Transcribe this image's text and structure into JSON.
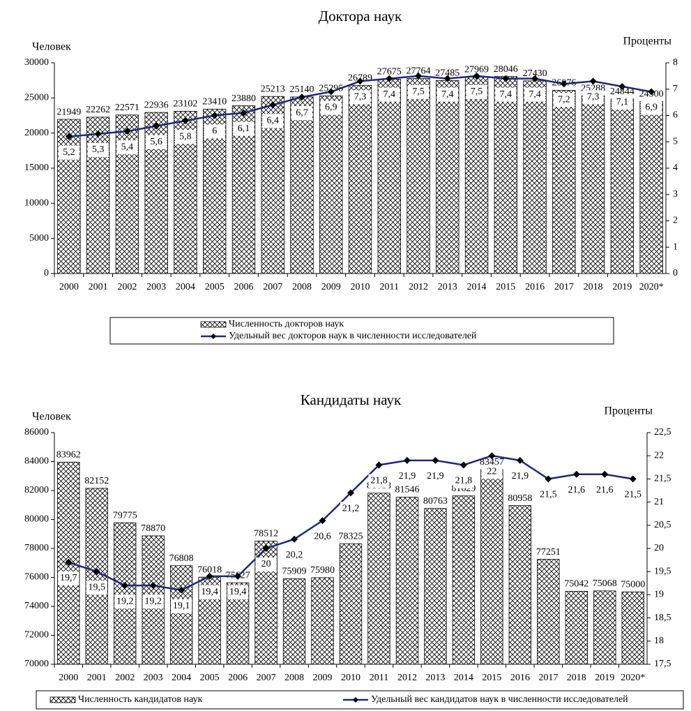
{
  "chart_data": [
    {
      "type": "bar-line",
      "title": "Доктора наук",
      "y_label": "Человек",
      "y2_label": "Проценты",
      "categories": [
        "2000",
        "2001",
        "2002",
        "2003",
        "2004",
        "2005",
        "2006",
        "2007",
        "2008",
        "2009",
        "2010",
        "2011",
        "2012",
        "2013",
        "2014",
        "2015",
        "2016",
        "2017",
        "2018",
        "2019",
        "2020*"
      ],
      "series": [
        {
          "name": "Численность докторов наук",
          "type": "bar",
          "color": "#000000",
          "values": [
            21949,
            22262,
            22571,
            22936,
            23102,
            23410,
            23880,
            25213,
            25140,
            25295,
            26789,
            27675,
            27764,
            27485,
            27969,
            28046,
            27430,
            26076,
            25288,
            24844,
            24500
          ]
        },
        {
          "name": "Удельный вес докторов наук в численности исследователей",
          "type": "line",
          "axis": "y2",
          "color": "#1f2a7a",
          "values": [
            5.2,
            5.3,
            5.4,
            5.6,
            5.8,
            6,
            6.1,
            6.4,
            6.7,
            6.9,
            7.3,
            7.4,
            7.5,
            7.4,
            7.5,
            7.4,
            7.4,
            7.2,
            7.3,
            7.1,
            6.9
          ],
          "value_labels": [
            "5,2",
            "5,3",
            "5,4",
            "5,6",
            "5,8",
            "6",
            "6,1",
            "6,4",
            "6,7",
            "6,9",
            "7,3",
            "7,4",
            "7,5",
            "7,4",
            "7,5",
            "7,4",
            "7,4",
            "7,2",
            "7,3",
            "7,1",
            "6,9"
          ]
        }
      ],
      "ylim": [
        0,
        30000
      ],
      "yticks": [
        0,
        5000,
        10000,
        15000,
        20000,
        25000,
        30000
      ],
      "y2lim": [
        0,
        8
      ],
      "y2ticks": [
        0,
        1,
        2,
        3,
        4,
        5,
        6,
        7,
        8
      ]
    },
    {
      "type": "bar-line",
      "title": "Кандидаты наук",
      "y_label": "Человек",
      "y2_label": "Проценты",
      "categories": [
        "2000",
        "2001",
        "2002",
        "2003",
        "2004",
        "2005",
        "2006",
        "2007",
        "2008",
        "2009",
        "2010",
        "2011",
        "2012",
        "2013",
        "2014",
        "2015",
        "2016",
        "2017",
        "2018",
        "2019",
        "2020*"
      ],
      "series": [
        {
          "name": "Численность  кандидатов  наук",
          "type": "bar",
          "color": "#000000",
          "values": [
            83962,
            82152,
            79775,
            78870,
            76808,
            76018,
            75627,
            78512,
            75909,
            75980,
            78325,
            81818,
            81546,
            80763,
            81629,
            83457,
            80958,
            77251,
            75042,
            75068,
            75000
          ]
        },
        {
          "name": "Удельный вес кандидатов  наук в численности  исследователей",
          "type": "line",
          "axis": "y2",
          "color": "#1f2a7a",
          "values": [
            19.7,
            19.5,
            19.2,
            19.2,
            19.1,
            19.4,
            19.4,
            20,
            20.2,
            20.6,
            21.2,
            21.8,
            21.9,
            21.9,
            21.8,
            22,
            21.9,
            21.5,
            21.6,
            21.6,
            21.5
          ],
          "value_labels": [
            "19,7",
            "19,5",
            "19,2",
            "19,2",
            "19,1",
            "19,4",
            "19,4",
            "20",
            "20,2",
            "20,6",
            "21,2",
            "21,8",
            "21,9",
            "21,9",
            "21,8",
            "22",
            "21,9",
            "21,5",
            "21,6",
            "21,6",
            "21,5"
          ]
        }
      ],
      "ylim": [
        70000,
        86000
      ],
      "yticks": [
        70000,
        72000,
        74000,
        76000,
        78000,
        80000,
        82000,
        84000,
        86000
      ],
      "y2lim": [
        17.5,
        22.5
      ],
      "y2ticks": [
        {
          "value": 17.5,
          "label": "17,5"
        },
        18,
        {
          "value": 18.5,
          "label": "18,5"
        },
        19,
        {
          "value": 19.5,
          "label": "19,5"
        },
        20,
        {
          "value": 20.5,
          "label": "20,5"
        },
        21,
        {
          "value": 21.5,
          "label": "21,5"
        },
        22,
        {
          "value": 22.5,
          "label": "22,5"
        }
      ]
    }
  ]
}
